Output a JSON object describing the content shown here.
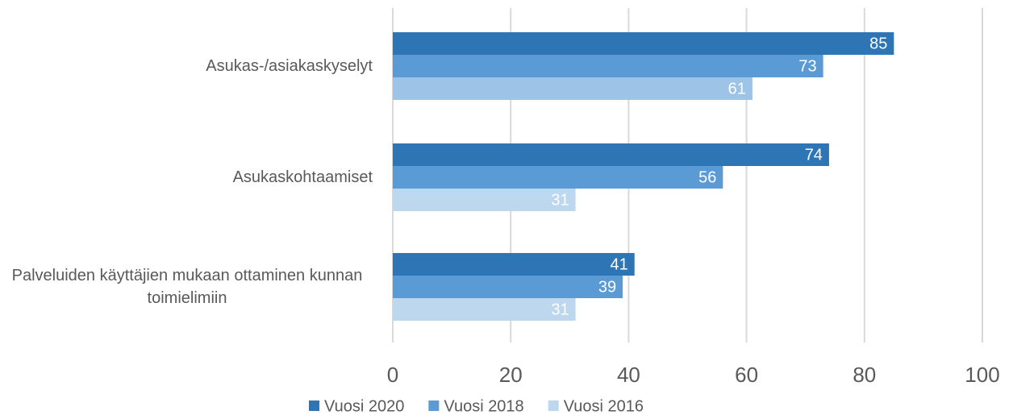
{
  "chart_data": {
    "type": "bar",
    "orientation": "horizontal",
    "categories": [
      "Asukas-/asiakaskyselyt",
      "Asukaskohtaamiset",
      "Palveluiden käyttäjien mukaan ottaminen kunnan toimielimiin"
    ],
    "series": [
      {
        "name": "Vuosi 2020",
        "color": "#2e75b6",
        "values": [
          85,
          74,
          41
        ]
      },
      {
        "name": "Vuosi 2018",
        "color": "#5b9bd5",
        "values": [
          73,
          56,
          39
        ]
      },
      {
        "name": "Vuosi 2016",
        "color": "#bdd7ee",
        "colors": [
          "#9dc3e6",
          "#bdd7ee",
          "#bdd7ee"
        ],
        "values": [
          61,
          31,
          31
        ]
      }
    ],
    "xlim": [
      0,
      100
    ],
    "xticks": [
      0,
      20,
      40,
      60,
      80,
      100
    ],
    "grid": true,
    "legend": "bottom"
  }
}
